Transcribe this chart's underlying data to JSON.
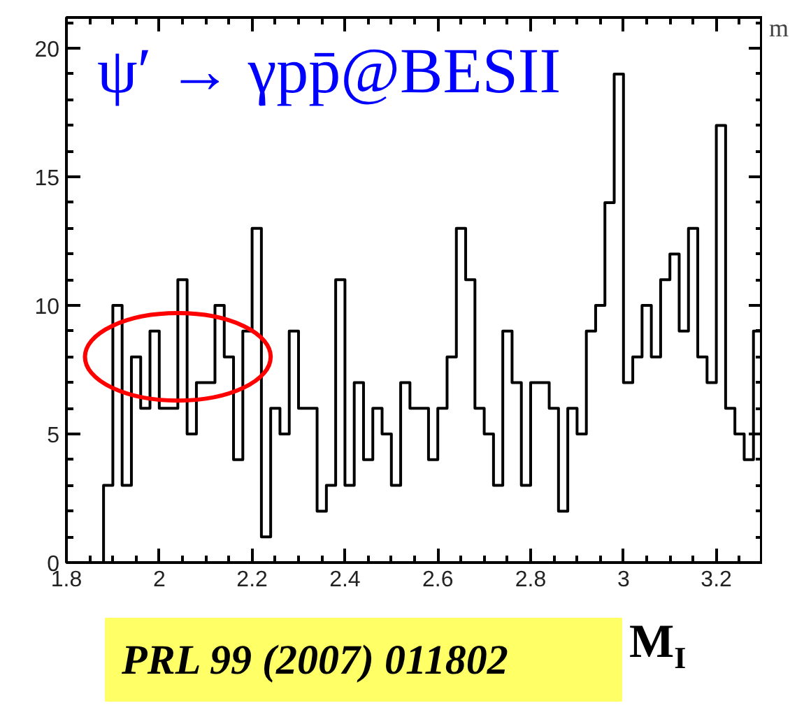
{
  "chart_data": {
    "type": "histogram",
    "title": "ψ′ → γpp̄@BESII",
    "xlabel": "M$_{I}$",
    "annotations": [
      "PRL 99 (2007) 011802",
      "m"
    ],
    "bins": [
      1.88,
      1.9,
      1.92,
      1.94,
      1.96,
      1.98,
      2.0,
      2.02,
      2.04,
      2.06,
      2.08,
      2.1,
      2.12,
      2.14,
      2.16,
      2.18,
      2.2,
      2.22,
      2.24,
      2.26,
      2.28,
      2.3,
      2.32,
      2.34,
      2.36,
      2.38,
      2.4,
      2.42,
      2.44,
      2.46,
      2.48,
      2.5,
      2.52,
      2.54,
      2.56,
      2.58,
      2.6,
      2.62,
      2.64,
      2.66,
      2.68,
      2.7,
      2.72,
      2.74,
      2.76,
      2.78,
      2.8,
      2.82,
      2.84,
      2.86,
      2.88,
      2.9,
      2.92,
      2.94,
      2.96,
      2.98,
      3.0,
      3.02,
      3.04,
      3.06,
      3.08,
      3.1,
      3.12,
      3.14,
      3.16,
      3.18,
      3.2,
      3.22,
      3.24,
      3.26,
      3.28,
      3.3
    ],
    "values": [
      3,
      10,
      3,
      8,
      6,
      9,
      6,
      6,
      11,
      5,
      7,
      7,
      10,
      8,
      4,
      9,
      13,
      1,
      6,
      5,
      9,
      6,
      6,
      2,
      3,
      11,
      3,
      7,
      4,
      6,
      5,
      3,
      7,
      6,
      6,
      4,
      6,
      8,
      13,
      11,
      6,
      5,
      3,
      9,
      7,
      3,
      7,
      7,
      6,
      2,
      6,
      5,
      9,
      10,
      14,
      19,
      7,
      8,
      10,
      8,
      11,
      12,
      9,
      13,
      8,
      7,
      17,
      6,
      5,
      4,
      9
    ],
    "color": "#000000",
    "xlim": [
      1.8,
      3.3
    ],
    "ylim": [
      0,
      21.2
    ],
    "xticks": [
      1.8,
      2,
      2.2,
      2.4,
      2.6,
      2.8,
      3,
      3.2
    ],
    "yticks": [
      0,
      5,
      10,
      15,
      20
    ]
  }
}
